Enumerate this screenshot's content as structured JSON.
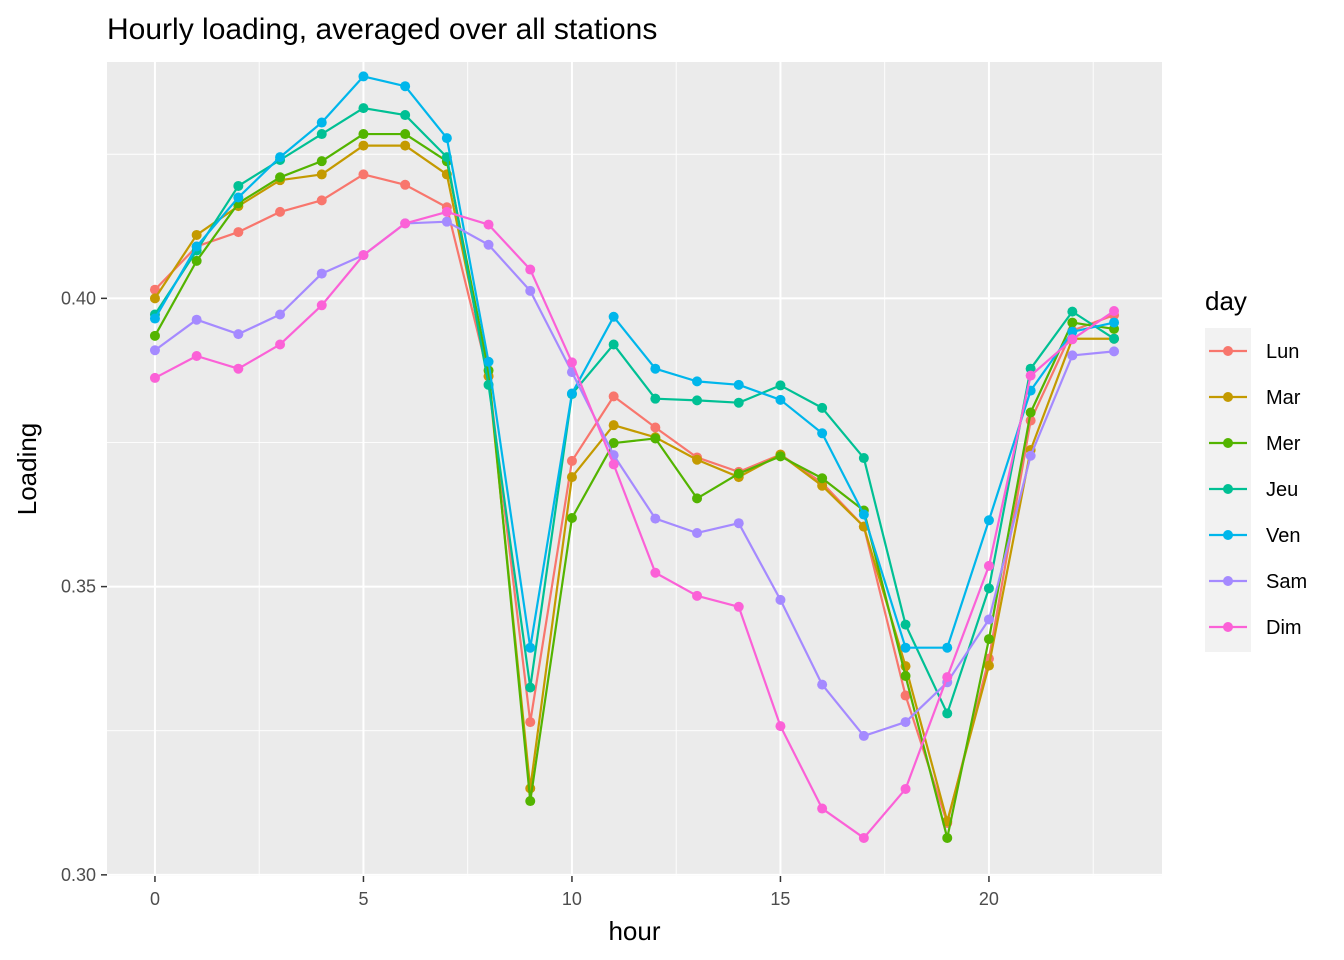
{
  "chart_data": {
    "type": "line",
    "title": "Hourly loading, averaged over all stations",
    "xlabel": "hour",
    "ylabel": "Loading",
    "xlim": [
      -1.15,
      24.15
    ],
    "ylim": [
      0.2998,
      0.441
    ],
    "x_ticks": [
      0,
      5,
      10,
      15,
      20
    ],
    "x_tick_labels": [
      "0",
      "5",
      "10",
      "15",
      "20"
    ],
    "y_ticks": [
      0.3,
      0.35,
      0.4
    ],
    "y_tick_labels": [
      "0.30",
      "0.35",
      "0.40"
    ],
    "grid": true,
    "legend_title": "day",
    "legend_position": "right",
    "x": [
      0,
      1,
      2,
      3,
      4,
      5,
      6,
      7,
      8,
      9,
      10,
      11,
      12,
      13,
      14,
      15,
      16,
      17,
      18,
      19,
      20,
      21,
      22,
      23
    ],
    "series": [
      {
        "name": "Lun",
        "color": "#F8766D",
        "values": [
          0.4015,
          0.409,
          0.4115,
          0.415,
          0.417,
          0.4215,
          0.4197,
          0.4158,
          0.3865,
          0.3265,
          0.3718,
          0.383,
          0.3776,
          0.3724,
          0.3699,
          0.3729,
          0.368,
          0.3604,
          0.3311,
          0.309,
          0.3375,
          0.3788,
          0.3944,
          0.3971
        ]
      },
      {
        "name": "Mar",
        "color": "#C49A00",
        "values": [
          0.4,
          0.411,
          0.416,
          0.4205,
          0.4215,
          0.4265,
          0.4265,
          0.4215,
          0.3865,
          0.315,
          0.369,
          0.378,
          0.3759,
          0.372,
          0.369,
          0.3729,
          0.3675,
          0.3604,
          0.3362,
          0.3093,
          0.3363,
          0.3737,
          0.393,
          0.393
        ]
      },
      {
        "name": "Mer",
        "color": "#53B400",
        "values": [
          0.3935,
          0.4065,
          0.4165,
          0.421,
          0.4238,
          0.4285,
          0.4285,
          0.4238,
          0.3875,
          0.3128,
          0.3619,
          0.3749,
          0.3757,
          0.3653,
          0.3696,
          0.3726,
          0.3688,
          0.3632,
          0.3345,
          0.3064,
          0.3409,
          0.3802,
          0.3958,
          0.3947
        ]
      },
      {
        "name": "Jeu",
        "color": "#00C094",
        "values": [
          0.3972,
          0.4083,
          0.4195,
          0.424,
          0.4285,
          0.433,
          0.4318,
          0.4245,
          0.385,
          0.3325,
          0.3834,
          0.392,
          0.3826,
          0.3823,
          0.3819,
          0.3849,
          0.381,
          0.3723,
          0.3434,
          0.328,
          0.3497,
          0.3878,
          0.3977,
          0.393
        ]
      },
      {
        "name": "Ven",
        "color": "#00B6EB",
        "values": [
          0.3965,
          0.409,
          0.4175,
          0.4245,
          0.4305,
          0.4385,
          0.4368,
          0.4278,
          0.389,
          0.3394,
          0.3835,
          0.3968,
          0.3878,
          0.3856,
          0.385,
          0.3824,
          0.3766,
          0.3625,
          0.3394,
          0.3394,
          0.3615,
          0.384,
          0.3942,
          0.3958
        ]
      },
      {
        "name": "Sam",
        "color": "#A58AFF",
        "values": [
          0.391,
          0.3963,
          0.3938,
          0.3972,
          0.4043,
          0.4075,
          0.413,
          0.4133,
          0.4093,
          0.4013,
          0.3872,
          0.3728,
          0.3618,
          0.3593,
          0.361,
          0.3477,
          0.333,
          0.3241,
          0.3265,
          0.3334,
          0.3443,
          0.3727,
          0.3901,
          0.3908
        ]
      },
      {
        "name": "Dim",
        "color": "#FB61D7",
        "values": [
          0.3862,
          0.39,
          0.3878,
          0.392,
          0.3988,
          0.4075,
          0.413,
          0.415,
          0.4128,
          0.405,
          0.3889,
          0.3712,
          0.3524,
          0.3484,
          0.3465,
          0.3258,
          0.3115,
          0.3064,
          0.3149,
          0.3343,
          0.3536,
          0.3866,
          0.3929,
          0.3978
        ]
      }
    ]
  }
}
